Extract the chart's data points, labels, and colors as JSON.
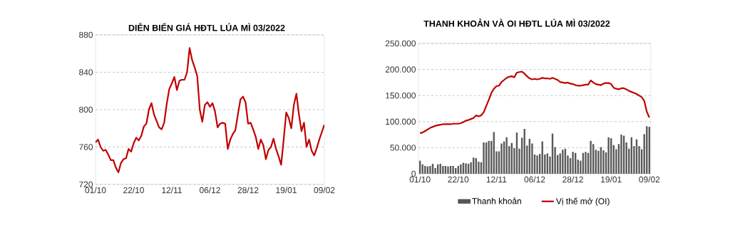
{
  "chart_data": [
    {
      "type": "line",
      "title": "DIỄN BIẾN GIÁ HĐTL LÚA MÌ 03/2022",
      "categories": [
        "01/10",
        null,
        null,
        null,
        null,
        null,
        null,
        null,
        null,
        null,
        null,
        null,
        null,
        null,
        null,
        "22/10",
        null,
        null,
        null,
        null,
        null,
        null,
        null,
        null,
        null,
        null,
        null,
        null,
        null,
        null,
        "12/11",
        null,
        null,
        null,
        null,
        null,
        null,
        null,
        null,
        null,
        null,
        null,
        null,
        null,
        null,
        "06/12",
        null,
        null,
        null,
        null,
        null,
        null,
        null,
        null,
        null,
        null,
        null,
        null,
        null,
        null,
        "28/12",
        null,
        null,
        null,
        null,
        null,
        null,
        null,
        null,
        null,
        null,
        null,
        null,
        null,
        null,
        "19/01",
        null,
        null,
        null,
        null,
        null,
        null,
        null,
        null,
        null,
        null,
        null,
        null,
        null,
        null,
        "09/02"
      ],
      "values": [
        765,
        768,
        760,
        756,
        757,
        752,
        746,
        746,
        738,
        733,
        743,
        747,
        748,
        758,
        755,
        764,
        770,
        767,
        772,
        782,
        785,
        800,
        807,
        795,
        788,
        781,
        779,
        786,
        806,
        822,
        828,
        835,
        821,
        831,
        832,
        832,
        840,
        866,
        853,
        845,
        836,
        800,
        787,
        805,
        808,
        803,
        807,
        798,
        781,
        785,
        786,
        785,
        758,
        768,
        774,
        778,
        795,
        811,
        814,
        808,
        785,
        786,
        779,
        771,
        758,
        768,
        762,
        747,
        757,
        760,
        769,
        758,
        750,
        741,
        768,
        797,
        791,
        780,
        805,
        817,
        795,
        777,
        786,
        760,
        768,
        756,
        751,
        759,
        768,
        776,
        784
      ],
      "color": "#c00000",
      "ylim": [
        720,
        880
      ],
      "yticks": [
        720,
        760,
        800,
        840,
        880
      ],
      "grid": "y"
    },
    {
      "type": "bar",
      "title": "THANH KHOẢN VÀ OI HĐTL LÚA MÌ  03/2022",
      "categories": [
        "01/10",
        null,
        null,
        null,
        null,
        null,
        null,
        null,
        null,
        null,
        null,
        null,
        null,
        null,
        null,
        "22/10",
        null,
        null,
        null,
        null,
        null,
        null,
        null,
        null,
        null,
        null,
        null,
        null,
        null,
        null,
        "12/11",
        null,
        null,
        null,
        null,
        null,
        null,
        null,
        null,
        null,
        null,
        null,
        null,
        null,
        null,
        "06/12",
        null,
        null,
        null,
        null,
        null,
        null,
        null,
        null,
        null,
        null,
        null,
        null,
        null,
        null,
        "28/12",
        null,
        null,
        null,
        null,
        null,
        null,
        null,
        null,
        null,
        null,
        null,
        null,
        null,
        null,
        "19/01",
        null,
        null,
        null,
        null,
        null,
        null,
        null,
        null,
        null,
        null,
        null,
        null,
        null,
        null,
        "09/02"
      ],
      "series": [
        {
          "name": "Thanh khoản",
          "type": "bar",
          "color": "#595959",
          "values": [
            25000,
            18000,
            15000,
            14000,
            15000,
            19000,
            11000,
            18000,
            19000,
            15000,
            15000,
            14000,
            15000,
            15000,
            11000,
            15000,
            18000,
            21000,
            20000,
            19000,
            22000,
            31000,
            30000,
            23000,
            22000,
            60000,
            60000,
            63000,
            63000,
            80000,
            43000,
            43000,
            58000,
            62000,
            70000,
            53000,
            59000,
            49000,
            79000,
            48000,
            69000,
            86000,
            54000,
            67000,
            58000,
            37000,
            35000,
            38000,
            62000,
            37000,
            39000,
            33000,
            77000,
            51000,
            36000,
            39000,
            46000,
            48000,
            35000,
            30000,
            42000,
            40000,
            27000,
            25000,
            40000,
            42000,
            40000,
            63000,
            57000,
            46000,
            44000,
            51000,
            45000,
            41000,
            70000,
            68000,
            55000,
            47000,
            57000,
            75000,
            73000,
            60000,
            48000,
            70000,
            53000,
            66000,
            53000,
            47000,
            76000,
            91000,
            90000
          ]
        },
        {
          "name": "Vị thế mở (OI)",
          "type": "line",
          "color": "#c00000",
          "values": [
            78000,
            79000,
            82000,
            85000,
            88000,
            90000,
            92000,
            93000,
            94000,
            95000,
            95000,
            95000,
            95000,
            96000,
            96000,
            96000,
            97000,
            99000,
            102000,
            103000,
            105000,
            107000,
            112000,
            110000,
            112000,
            118000,
            130000,
            142000,
            155000,
            163000,
            168000,
            169000,
            176000,
            180000,
            184000,
            186000,
            187000,
            185000,
            194000,
            195000,
            196000,
            192000,
            187000,
            183000,
            181000,
            182000,
            181000,
            182000,
            184000,
            183000,
            183000,
            182000,
            184000,
            182000,
            180000,
            176000,
            175000,
            174000,
            175000,
            173000,
            172000,
            170000,
            169000,
            169000,
            170000,
            171000,
            171000,
            179000,
            175000,
            172000,
            171000,
            170000,
            173000,
            174000,
            174000,
            172000,
            165000,
            163000,
            162000,
            164000,
            164000,
            162000,
            159000,
            157000,
            155000,
            153000,
            150000,
            147000,
            140000,
            119000,
            108000
          ]
        }
      ],
      "ylim": [
        0,
        250000
      ],
      "yticks": [
        {
          "value": 0,
          "label": "0"
        },
        {
          "value": 50000,
          "label": "50.000"
        },
        {
          "value": 100000,
          "label": "100.000"
        },
        {
          "value": 150000,
          "label": "150.000"
        },
        {
          "value": 200000,
          "label": "200.000"
        },
        {
          "value": 250000,
          "label": "250.000"
        }
      ],
      "grid": "y",
      "legend": "bottom"
    }
  ]
}
